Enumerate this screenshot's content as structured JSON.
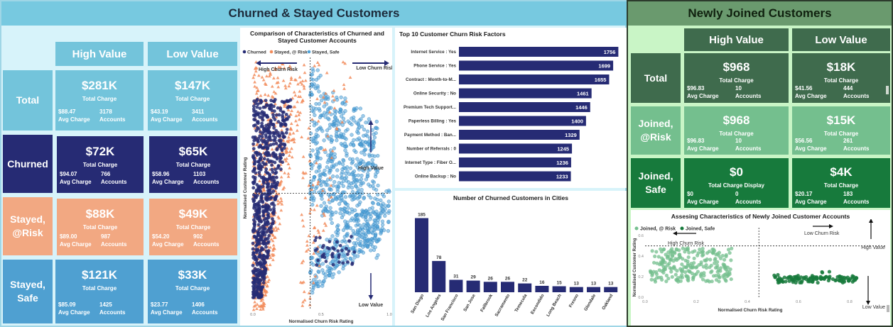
{
  "left": {
    "title": "Churned & Stayed Customers",
    "col_headers": [
      "High Value",
      "Low Value"
    ],
    "rows": [
      {
        "label": "Total",
        "bg": "#73c4db",
        "fg": "#ffffff",
        "cells": [
          {
            "value": "$281K",
            "caption": "Total Charge",
            "stat1_value": "$88.47",
            "stat1_label": "Avg Charge",
            "stat2_value": "3178",
            "stat2_label": "Accounts"
          },
          {
            "value": "$147K",
            "caption": "Total Charge",
            "stat1_value": "$43.19",
            "stat1_label": "Avg Charge",
            "stat2_value": "3411",
            "stat2_label": "Accounts"
          }
        ]
      },
      {
        "label": "Churned",
        "bg": "#262b74",
        "fg": "#ffffff",
        "cells": [
          {
            "value": "$72K",
            "caption": "Total Charge",
            "stat1_value": "$94.07",
            "stat1_label": "Avg Charge",
            "stat2_value": "766",
            "stat2_label": "Accounts"
          },
          {
            "value": "$65K",
            "caption": "Total Charge",
            "stat1_value": "$58.96",
            "stat1_label": "Avg Charge",
            "stat2_value": "1103",
            "stat2_label": "Accounts"
          }
        ]
      },
      {
        "label": "Stayed, @Risk",
        "bg": "#f2a882",
        "fg": "#ffffff",
        "cells": [
          {
            "value": "$88K",
            "caption": "Total Charge",
            "stat1_value": "$89.00",
            "stat1_label": "Avg Charge",
            "stat2_value": "987",
            "stat2_label": "Accounts"
          },
          {
            "value": "$49K",
            "caption": "Total Charge",
            "stat1_value": "$54.20",
            "stat1_label": "Avg Charge",
            "stat2_value": "902",
            "stat2_label": "Accounts"
          }
        ]
      },
      {
        "label": "Stayed, Safe",
        "bg": "#4fa0d1",
        "fg": "#ffffff",
        "cells": [
          {
            "value": "$121K",
            "caption": "Total Charge",
            "stat1_value": "$85.09",
            "stat1_label": "Avg Charge",
            "stat2_value": "1425",
            "stat2_label": "Accounts"
          },
          {
            "value": "$33K",
            "caption": "Total Charge",
            "stat1_value": "$23.77",
            "stat1_label": "Avg Charge",
            "stat2_value": "1406",
            "stat2_label": "Accounts"
          }
        ]
      }
    ],
    "scatter": {
      "title": "Comparison of Characteristics of Churned and Stayed Customer Accounts",
      "legend": [
        {
          "name": "Churned",
          "color": "#262b74"
        },
        {
          "name": "Stayed, @ Risk",
          "color": "#f28c5c"
        },
        {
          "name": "Stayed, Safe",
          "color": "#4fa3d8"
        }
      ],
      "xlabel": "Normalised Churn Risk Rating",
      "ylabel": "Normalised Customer Rating",
      "x_ticks": [
        "0.0",
        "0.5",
        "1.0"
      ],
      "annotations": {
        "high_churn": "High Churn Risk",
        "low_churn": "Low Churn Risk",
        "high_value": "High Value",
        "low_value": "Low Value"
      }
    },
    "top10": {
      "title": "Top 10 Customer Churn Risk Factors",
      "bar_color": "#262b74",
      "max": 1800,
      "items": [
        {
          "label": "Internet Service : Yes",
          "value": 1756
        },
        {
          "label": "Phone Service : Yes",
          "value": 1699
        },
        {
          "label": "Contract : Month-to-M...",
          "value": 1655
        },
        {
          "label": "Online Security : No",
          "value": 1461
        },
        {
          "label": "Premium Tech Support...",
          "value": 1446
        },
        {
          "label": "Paperless Billing : Yes",
          "value": 1400
        },
        {
          "label": "Payment Method : Ban...",
          "value": 1329
        },
        {
          "label": "Number of Referrals : 0",
          "value": 1245
        },
        {
          "label": "Internet Type : Fiber O...",
          "value": 1236
        },
        {
          "label": "Online Backup : No",
          "value": 1233
        }
      ]
    },
    "cities": {
      "title": "Number of Churned Customers in Cities",
      "bar_color": "#262b74",
      "max": 200,
      "items": [
        {
          "label": "San Diego",
          "value": 185
        },
        {
          "label": "Los Angeles",
          "value": 78
        },
        {
          "label": "San Francisco",
          "value": 31
        },
        {
          "label": "San Jose",
          "value": 29
        },
        {
          "label": "Fallbrook",
          "value": 26
        },
        {
          "label": "Sacramento",
          "value": 26
        },
        {
          "label": "Temecula",
          "value": 22
        },
        {
          "label": "Escondido",
          "value": 16
        },
        {
          "label": "Long Beach",
          "value": 15
        },
        {
          "label": "Fresno",
          "value": 13
        },
        {
          "label": "Glendale",
          "value": 13
        },
        {
          "label": "Oakland",
          "value": 13
        }
      ]
    }
  },
  "right": {
    "title": "Newly Joined Customers",
    "col_headers": [
      "High Value",
      "Low Value"
    ],
    "rows": [
      {
        "label": "Total",
        "bg": "#3f6b4d",
        "fg": "#ffffff",
        "cells": [
          {
            "value": "$968",
            "caption": "Total Charge",
            "stat1_value": "$96.83",
            "stat1_label": "Avg Charge",
            "stat2_value": "10",
            "stat2_label": "Accounts"
          },
          {
            "value": "$18K",
            "caption": "Total Charge",
            "stat1_value": "$41.56",
            "stat1_label": "Avg Charge",
            "stat2_value": "444",
            "stat2_label": "Accounts"
          }
        ]
      },
      {
        "label": "Joined, @Risk",
        "bg": "#74bf8e",
        "fg": "#ffffff",
        "cells": [
          {
            "value": "$968",
            "caption": "Total Charge",
            "stat1_value": "$96.83",
            "stat1_label": "Avg Charge",
            "stat2_value": "10",
            "stat2_label": "Accounts"
          },
          {
            "value": "$15K",
            "caption": "Total Charge",
            "stat1_value": "$56.56",
            "stat1_label": "Avg Charge",
            "stat2_value": "261",
            "stat2_label": "Accounts"
          }
        ]
      },
      {
        "label": "Joined, Safe",
        "bg": "#177a3c",
        "fg": "#ffffff",
        "cells": [
          {
            "value": "$0",
            "caption": "Total Charge Display",
            "stat1_value": "$0",
            "stat1_label": "Avg Charge",
            "stat2_value": "0",
            "stat2_label": "Accounts"
          },
          {
            "value": "$4K",
            "caption": "Total Charge",
            "stat1_value": "$20.17",
            "stat1_label": "Avg Charge",
            "stat2_value": "183",
            "stat2_label": "Accounts"
          }
        ]
      }
    ],
    "scatter": {
      "title": "Assesing Characteristics of Newly Joined Customer Accounts",
      "legend": [
        {
          "name": "Joined, @ Risk",
          "color": "#74bf8e"
        },
        {
          "name": "Joined, Safe",
          "color": "#177a3c"
        }
      ],
      "xlabel": "Normalised Churn Risk Rating",
      "ylabel": "Normalised Customer Rating",
      "x_ticks": [
        "0.0",
        "0.2",
        "0.4",
        "0.6",
        "0.8"
      ],
      "y_ticks": [
        "0.0",
        "0.2",
        "0.4",
        "0.6"
      ],
      "annotations": {
        "high_churn": "High Churn Risk",
        "low_churn": "Low Churn Risk",
        "high_value": "High Value",
        "low_value": "Low Value"
      }
    }
  }
}
